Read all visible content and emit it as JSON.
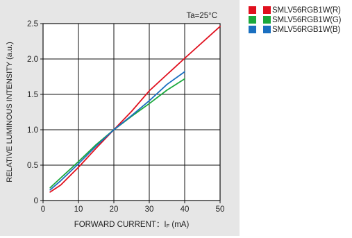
{
  "chart_data": {
    "type": "line",
    "xlabel": "FORWARD CURRENT：I",
    "xlabel_sub": "F",
    "xlabel_unit": " (mA)",
    "ylabel": "RELATIVE LUMINOUS INTENSITY (a.u.)",
    "annotation": "Ta=25°C",
    "xlim": [
      0,
      50
    ],
    "ylim": [
      0,
      2.5
    ],
    "x_ticks": [
      0,
      10,
      20,
      30,
      40,
      50
    ],
    "y_ticks": [
      0,
      0.5,
      1.0,
      1.5,
      2.0,
      2.5
    ],
    "x_tick_labels": [
      "0",
      "10",
      "20",
      "30",
      "40",
      "50"
    ],
    "y_tick_labels": [
      "0",
      "0.5",
      "1.0",
      "1.5",
      "2.0",
      "2.5"
    ],
    "grid": true,
    "series": [
      {
        "name": "SMLV56RGB1W(R)",
        "color": "#e0101e",
        "x": [
          2,
          5,
          10,
          15,
          20,
          25,
          30,
          35,
          40,
          50
        ],
        "y": [
          0.12,
          0.22,
          0.47,
          0.74,
          1.0,
          1.26,
          1.55,
          1.78,
          2.01,
          2.46
        ]
      },
      {
        "name": "SMLV56RGB1W(G)",
        "color": "#1aa83c",
        "x": [
          2,
          5,
          10,
          15,
          20,
          25,
          30,
          35,
          40
        ],
        "y": [
          0.18,
          0.32,
          0.55,
          0.79,
          1.0,
          1.19,
          1.37,
          1.56,
          1.72
        ]
      },
      {
        "name": "SMLV56RGB1W(B)",
        "color": "#1a6fc0",
        "x": [
          2,
          5,
          10,
          15,
          20,
          25,
          30,
          35,
          40
        ],
        "y": [
          0.15,
          0.28,
          0.52,
          0.77,
          1.0,
          1.2,
          1.41,
          1.64,
          1.82
        ]
      }
    ]
  }
}
